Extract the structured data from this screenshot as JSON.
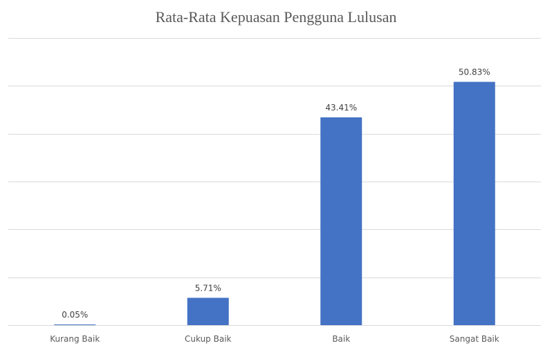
{
  "chart_data": {
    "type": "bar",
    "title": "Rata-Rata Kepuasan Pengguna Lulusan",
    "xlabel": "",
    "ylabel": "",
    "categories": [
      "Kurang Baik",
      "Cukup Baik",
      "Baik",
      "Sangat Baik"
    ],
    "values": [
      0.05,
      5.71,
      43.41,
      50.83
    ],
    "data_labels": [
      "0.05%",
      "5.71%",
      "43.41%",
      "50.83%"
    ],
    "ylim": [
      0,
      60
    ],
    "y_gridlines": [
      10,
      20,
      30,
      40,
      50,
      60
    ],
    "grid": true,
    "legend": "none",
    "colors": {
      "bar": "#4472c4",
      "grid": "#d9d9d9",
      "title": "#595959",
      "label": "#404040"
    }
  }
}
